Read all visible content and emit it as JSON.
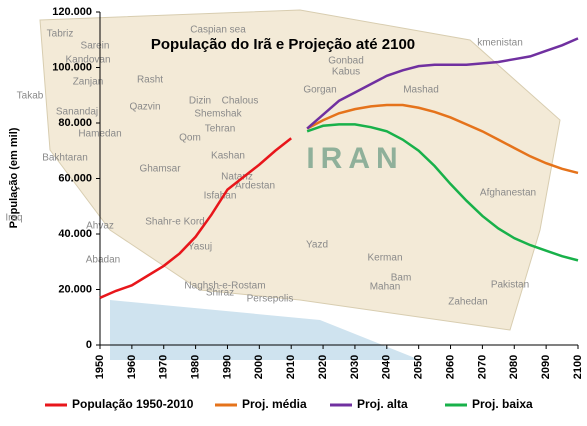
{
  "chart_data": {
    "type": "line",
    "title": "População do Irã e Projeção até 2100",
    "y_label": "População (em mil)",
    "x": [
      1950,
      1955,
      1960,
      1965,
      1970,
      1975,
      1980,
      1985,
      1990,
      1995,
      2000,
      2005,
      2010,
      2015,
      2020,
      2025,
      2030,
      2035,
      2040,
      2045,
      2050,
      2055,
      2060,
      2065,
      2070,
      2075,
      2080,
      2085,
      2090,
      2095,
      2100
    ],
    "series": [
      {
        "name": "População 1950-2010",
        "color": "#e8161b",
        "values": [
          17000,
          19500,
          21500,
          25000,
          28500,
          33000,
          39000,
          47000,
          56000,
          60500,
          65000,
          70000,
          74500,
          null,
          null,
          null,
          null,
          null,
          null,
          null,
          null,
          null,
          null,
          null,
          null,
          null,
          null,
          null,
          null,
          null,
          null
        ]
      },
      {
        "name": "Proj. média",
        "color": "#e5731b",
        "values": [
          null,
          null,
          null,
          null,
          null,
          null,
          null,
          null,
          null,
          null,
          null,
          null,
          null,
          78000,
          81000,
          83500,
          85000,
          86000,
          86500,
          86500,
          85500,
          84000,
          82000,
          79500,
          77000,
          74000,
          71000,
          68000,
          65500,
          63500,
          62000
        ]
      },
      {
        "name": "Proj. alta",
        "color": "#7030a0",
        "values": [
          null,
          null,
          null,
          null,
          null,
          null,
          null,
          null,
          null,
          null,
          null,
          null,
          null,
          78000,
          83000,
          88000,
          91000,
          94000,
          97000,
          99000,
          100500,
          101000,
          101000,
          101000,
          101500,
          102000,
          103000,
          104000,
          106000,
          108000,
          110500
        ]
      },
      {
        "name": "Proj. baixa",
        "color": "#18b14a",
        "values": [
          null,
          null,
          null,
          null,
          null,
          null,
          null,
          null,
          null,
          null,
          null,
          null,
          null,
          77000,
          79000,
          79500,
          79500,
          78500,
          77000,
          74000,
          70000,
          64500,
          58000,
          52000,
          46500,
          42000,
          38500,
          36000,
          34000,
          32000,
          30500
        ]
      }
    ],
    "xlim": [
      1950,
      2100
    ],
    "xticks": [
      1950,
      1960,
      1970,
      1980,
      1990,
      2000,
      2010,
      2020,
      2030,
      2040,
      2050,
      2060,
      2070,
      2080,
      2090,
      2100
    ],
    "ylim": [
      0,
      120000
    ],
    "yticks": [
      0,
      {
        "value": 20000,
        "label": "20.000"
      },
      {
        "value": 40000,
        "label": "40.000"
      },
      {
        "value": 60000,
        "label": "60.000"
      },
      {
        "value": 80000,
        "label": "80.000"
      },
      {
        "value": 100000,
        "label": "100.000"
      },
      {
        "value": 120000,
        "label": "120.000"
      }
    ],
    "background_labels": [
      "Caspian sea",
      "Tabriz",
      "Sarein",
      "Kandovan",
      "Takab",
      "Zanjan",
      "Rasht",
      "Qazvin",
      "Sanandaj",
      "Hamedan",
      "Dizin",
      "Chalous",
      "Shemshak",
      "Tehran",
      "Qom",
      "Kashan",
      "Bakhtaran",
      "Ghamsar",
      "Natanz",
      "Ardestan",
      "Isfahan",
      "Shahr-e Kord",
      "Ahvaz",
      "Abadan",
      "Yasuj",
      "Yazd",
      "Naghsh-e-Rostam",
      "Shiraz",
      "Persepolis",
      "Kerman",
      "Mahan",
      "Bam",
      "Zahedan",
      "Gorgan",
      "Gonbad",
      "Kabus",
      "Mashad",
      "Afghanestan",
      "Pakistan",
      "Iraq",
      "IRAN",
      "kmenistan"
    ]
  }
}
